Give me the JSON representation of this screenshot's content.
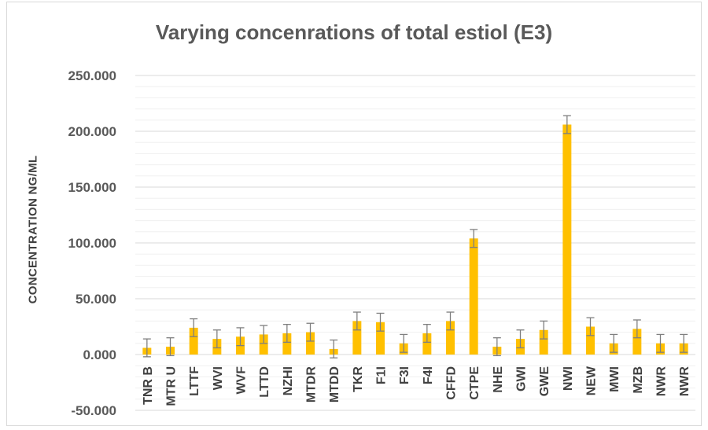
{
  "chart_data": {
    "type": "bar",
    "title": "Varying concenrations of total estiol (E3)",
    "xlabel": "",
    "ylabel": "CONCENTRATION NG/ML",
    "ylim": [
      -50,
      250
    ],
    "yticks": [
      "250.000",
      "200.000",
      "150.000",
      "100.000",
      "50.000",
      "0.000",
      "-50.000"
    ],
    "ytick_values": [
      250,
      200,
      150,
      100,
      50,
      0,
      -50
    ],
    "grid": true,
    "bar_color": "#ffc000",
    "error_color": "#7f7f7f",
    "categories": [
      "TNR B",
      "MTR U",
      "LTTF",
      "WVI",
      "WVF",
      "LTTD",
      "NZHI",
      "MTDR",
      "MTDD",
      "TKR",
      "F1I",
      "F3I",
      "F4I",
      "CFFD",
      "CTPE",
      "NHE",
      "GWI",
      "GWE",
      "NWI",
      "NEW",
      "MWI",
      "MZB",
      "NWR",
      "NWR"
    ],
    "values": [
      6,
      7,
      24,
      14,
      16,
      18,
      19,
      20,
      5,
      30,
      29,
      10,
      19,
      30,
      104,
      7,
      14,
      22,
      206,
      25,
      10,
      23,
      10,
      10
    ],
    "errors": [
      8,
      8,
      8,
      8,
      8,
      8,
      8,
      8,
      8,
      8,
      8,
      8,
      8,
      8,
      8,
      8,
      8,
      8,
      8,
      8,
      8,
      8,
      8,
      8
    ]
  }
}
